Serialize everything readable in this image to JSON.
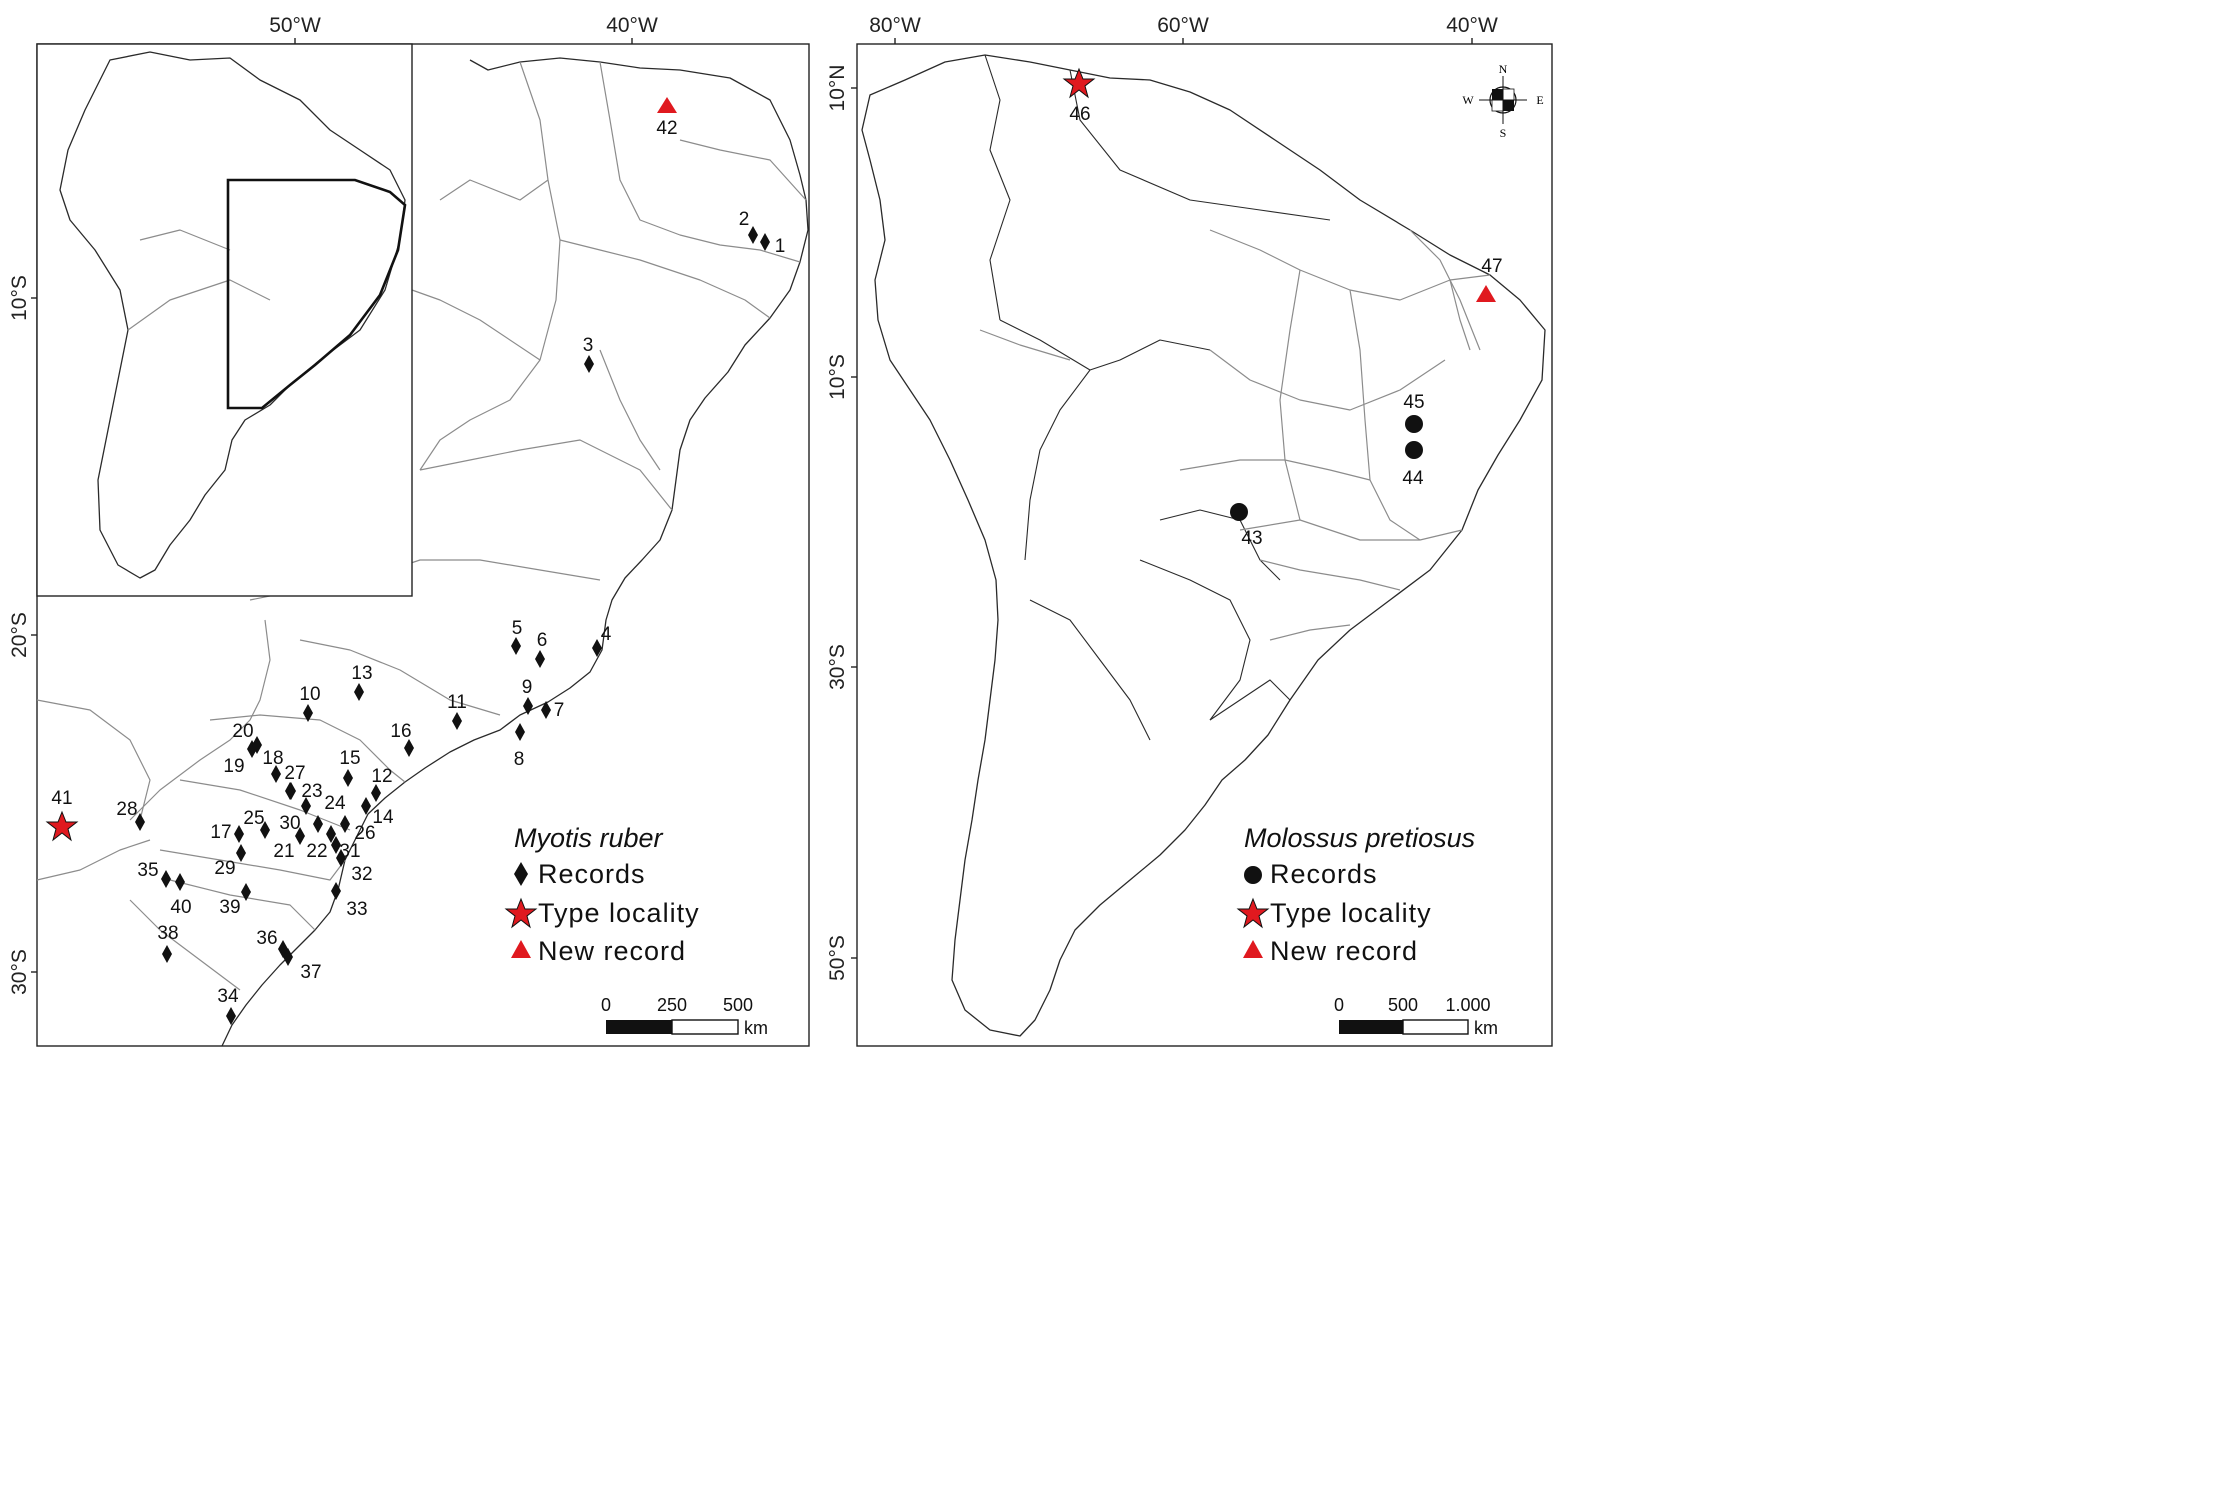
{
  "left_map": {
    "top_ticks": [
      "50°W",
      "40°W"
    ],
    "left_ticks": [
      "10°S",
      "20°S",
      "30°S"
    ],
    "legend": {
      "title": "Myotis ruber",
      "items": [
        "Records",
        "Type locality",
        "New record"
      ]
    },
    "scale": {
      "labels": [
        "0",
        "250",
        "500"
      ],
      "unit": "km"
    },
    "records": [
      "1",
      "2",
      "3",
      "4",
      "5",
      "6",
      "7",
      "8",
      "9",
      "10",
      "11",
      "12",
      "13",
      "14",
      "15",
      "16",
      "17",
      "18",
      "19",
      "20",
      "21",
      "22",
      "23",
      "24",
      "25",
      "26",
      "27",
      "28",
      "29",
      "30",
      "31",
      "32",
      "33",
      "34",
      "35",
      "36",
      "37",
      "38",
      "39",
      "40"
    ],
    "type_locality": "41",
    "new_record": "42"
  },
  "right_map": {
    "top_ticks": [
      "80°W",
      "60°W",
      "40°W"
    ],
    "left_ticks": [
      "10°N",
      "10°S",
      "30°S",
      "50°S"
    ],
    "legend": {
      "title": "Molossus pretiosus",
      "items": [
        "Records",
        "Type locality",
        "New record"
      ]
    },
    "scale": {
      "labels": [
        "0",
        "500",
        "1.000"
      ],
      "unit": "km"
    },
    "compass": [
      "N",
      "S",
      "W",
      "E"
    ],
    "records": [
      "43",
      "44",
      "45"
    ],
    "type_locality": "46",
    "new_record": "47"
  },
  "colors": {
    "marker_red": "#e0191f",
    "marker_black": "#111111",
    "boundary": "#8c8c8c",
    "coast": "#2a2a2a"
  }
}
